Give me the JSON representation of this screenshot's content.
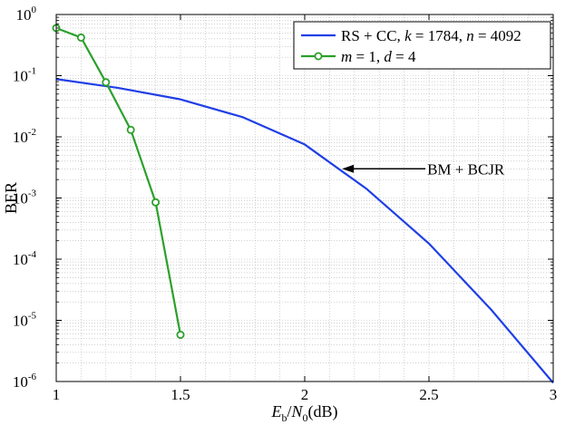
{
  "chart_data": {
    "type": "line",
    "xlabel": {
      "main1": "E",
      "sub1": "b",
      "sep": "/",
      "main2": "N",
      "sub2": "0",
      "unit": "(dB)"
    },
    "ylabel": "BER",
    "xlim": [
      1,
      3
    ],
    "ylim": [
      1e-06,
      1
    ],
    "yscale": "log",
    "grid": true,
    "x_ticks": [
      {
        "value": 1,
        "label": "1"
      },
      {
        "value": 1.5,
        "label": "1.5"
      },
      {
        "value": 2,
        "label": "2"
      },
      {
        "value": 2.5,
        "label": "2.5"
      },
      {
        "value": 3,
        "label": "3"
      }
    ],
    "y_ticks": [
      {
        "value": 1,
        "base": "10",
        "exp": "0"
      },
      {
        "value": 0.1,
        "base": "10",
        "exp": "-1"
      },
      {
        "value": 0.01,
        "base": "10",
        "exp": "-2"
      },
      {
        "value": 0.001,
        "base": "10",
        "exp": "-3"
      },
      {
        "value": 0.0001,
        "base": "10",
        "exp": "-4"
      },
      {
        "value": 1e-05,
        "base": "10",
        "exp": "-5"
      },
      {
        "value": 1e-06,
        "base": "10",
        "exp": "-6"
      }
    ],
    "legend_position": "top-right",
    "series": [
      {
        "legend": {
          "part1": "RS + CC,  ",
          "k_var": "k",
          "part2": " = 1784,  ",
          "n_var": "n",
          "part3": " = 4092"
        },
        "color": "#1f3fe6",
        "marker": "none",
        "x": [
          1,
          1.25,
          1.5,
          1.75,
          2,
          2.25,
          2.5,
          2.75,
          3
        ],
        "y": [
          0.088,
          0.063,
          0.041,
          0.021,
          0.0075,
          0.0014,
          0.00018,
          1.5e-05,
          9.5e-07
        ]
      },
      {
        "legend": {
          "m_var": "m",
          "part1": " = 1,  ",
          "d_var": "d",
          "part2": " = 4"
        },
        "color": "#2ca02c",
        "marker": "circle",
        "x": [
          1,
          1.1,
          1.2,
          1.3,
          1.4,
          1.5
        ],
        "y": [
          0.6,
          0.42,
          0.078,
          0.013,
          0.00085,
          5.8e-06
        ]
      }
    ],
    "annotations": [
      {
        "text": "BM + BCJR",
        "x": 2.15,
        "y": 0.003
      }
    ]
  }
}
